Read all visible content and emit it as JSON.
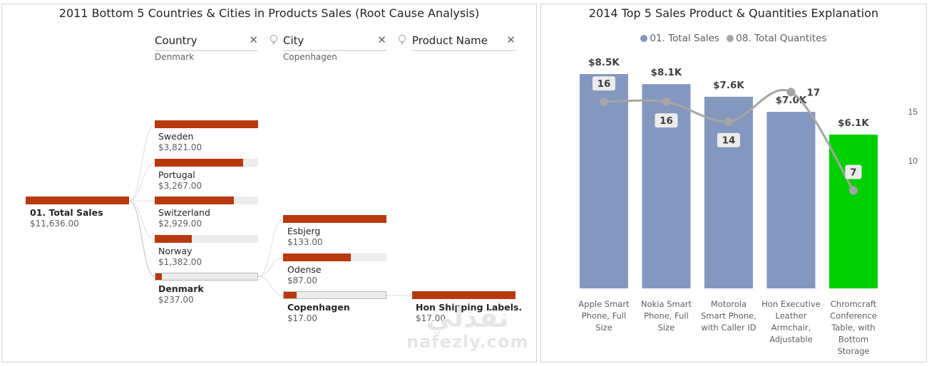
{
  "decomp": {
    "title": "2011 Bottom 5 Countries & Cities in Products Sales (Root Cause Analysis)",
    "levels": [
      {
        "label": "Country",
        "value": "Denmark"
      },
      {
        "label": "City",
        "value": "Copenhagen"
      },
      {
        "label": "Product Name",
        "value": ""
      }
    ],
    "root": {
      "name": "01. Total Sales",
      "value": "$11,636.00",
      "fill": 1.0
    },
    "countries": [
      {
        "name": "Sweden",
        "value": "$3,821.00",
        "fill": 1.0
      },
      {
        "name": "Portugal",
        "value": "$3,267.00",
        "fill": 0.855
      },
      {
        "name": "Switzerland",
        "value": "$2,929.00",
        "fill": 0.767
      },
      {
        "name": "Norway",
        "value": "$1,382.00",
        "fill": 0.362
      },
      {
        "name": "Denmark",
        "value": "$237.00",
        "fill": 0.062
      }
    ],
    "cities": [
      {
        "name": "Esbjerg",
        "value": "$133.00",
        "fill": 1.0
      },
      {
        "name": "Odense",
        "value": "$87.00",
        "fill": 0.654
      },
      {
        "name": "Copenhagen",
        "value": "$17.00",
        "fill": 0.128
      }
    ],
    "products": [
      {
        "name": "Hon Shipping Labels...",
        "value": "$17.00",
        "fill": 1.0
      }
    ]
  },
  "combo": {
    "title": "2014 Top 5 Sales Product & Quantities Explanation",
    "legend": [
      {
        "label": "01. Total Sales",
        "color": "#8497bf"
      },
      {
        "label": "08. Total Quantites",
        "color": "#a6a6a6"
      }
    ],
    "colors": {
      "bar": "#8497bf",
      "highlight": "#00d000",
      "line": "#a6a6a6"
    }
  },
  "chart_data": {
    "type": "bar",
    "categories": [
      "Apple Smart Phone, Full Size",
      "Nokia Smart Phone, Full Size",
      "Motorola Smart Phone, with Caller ID",
      "Hon Executive Leather Armchair, Adjustable",
      "Chromcraft Conference Table, with Bottom Storage"
    ],
    "category_lines": [
      [
        "Apple Smart",
        "Phone, Full",
        "Size"
      ],
      [
        "Nokia Smart",
        "Phone, Full",
        "Size"
      ],
      [
        "Motorola",
        "Smart Phone,",
        "with Caller ID"
      ],
      [
        "Hon Executive",
        "Leather",
        "Armchair,",
        "Adjustable"
      ],
      [
        "Chromcraft",
        "Conference",
        "Table, with",
        "Bottom",
        "Storage"
      ]
    ],
    "series": [
      {
        "name": "01. Total Sales",
        "values": [
          8500,
          8100,
          7600,
          7000,
          6100
        ],
        "labels": [
          "$8.5K",
          "$8.1K",
          "$7.6K",
          "$7.0K",
          "$6.1K"
        ]
      },
      {
        "name": "08. Total Quantites",
        "values": [
          16,
          16,
          14,
          17,
          7
        ],
        "labels": [
          "16",
          "16",
          "14",
          "17",
          "7"
        ]
      }
    ],
    "highlight_index": 4,
    "y_left": [
      0,
      8500
    ],
    "y_right": [
      0,
      20
    ],
    "y_right_ticks": [
      10,
      15
    ]
  }
}
